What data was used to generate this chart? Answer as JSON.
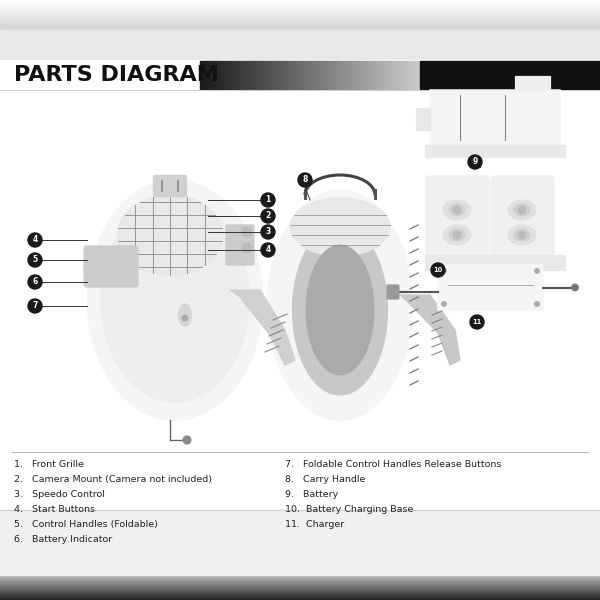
{
  "title": "PARTS DIAGRAM",
  "fig_w": 6.0,
  "fig_h": 6.0,
  "dpi": 100,
  "bg_color": "#ffffff",
  "part_labels_col1": [
    "1.   Front Grille",
    "2.   Camera Mount (Camera not included)",
    "3.   Speedo Control",
    "4.   Start Buttons",
    "5.   Control Handles (Foldable)",
    "6.   Battery Indicator"
  ],
  "part_labels_col2": [
    "7.   Foldable Control Handles Release Buttons",
    "8.   Carry Handle",
    "9.   Battery",
    "10.  Battery Charging Base",
    "11.  Charger"
  ],
  "top_bar_color": "#cccccc",
  "title_bar_color": "#222222",
  "bottom_bar_color": "#444444",
  "line_color": "#555555",
  "body_fill": "#f5f5f5",
  "dome_fill": "#e8e8e8",
  "dark_fill": "#999999",
  "callout_bg": "#1a1a1a",
  "callout_fg": "#ffffff"
}
